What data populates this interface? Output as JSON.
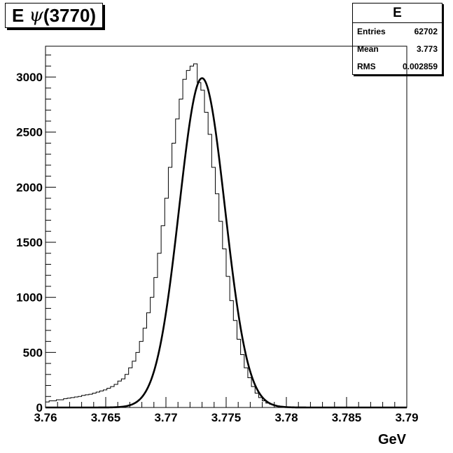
{
  "title": {
    "prefix": "E",
    "greek": "ψ",
    "suffix": "(3770)"
  },
  "stats": {
    "name": "E",
    "rows": [
      {
        "label": "Entries",
        "value": "62702"
      },
      {
        "label": "Mean",
        "value": "3.773"
      },
      {
        "label": "RMS",
        "value": "0.002859"
      }
    ]
  },
  "chart_data": {
    "type": "histogram",
    "xlabel": "GeV",
    "ylabel": "",
    "xlim": [
      3.76,
      3.79
    ],
    "ylim": [
      0,
      3280
    ],
    "x_ticks": [
      "3.76",
      "3.765",
      "3.77",
      "3.775",
      "3.78",
      "3.785",
      "3.79"
    ],
    "y_ticks": [
      "0",
      "500",
      "1000",
      "1500",
      "2000",
      "2500",
      "3000"
    ],
    "histogram": {
      "bin_width": 0.0003,
      "bin_start": 3.76,
      "counts": [
        50,
        60,
        60,
        70,
        70,
        80,
        85,
        90,
        95,
        100,
        110,
        115,
        120,
        130,
        140,
        150,
        160,
        175,
        190,
        210,
        240,
        260,
        300,
        360,
        420,
        500,
        600,
        720,
        860,
        1000,
        1180,
        1400,
        1650,
        1900,
        2180,
        2400,
        2620,
        2800,
        2980,
        3060,
        3100,
        3120,
        2950,
        2880,
        2680,
        2480,
        2180,
        1940,
        1690,
        1440,
        1190,
        970,
        790,
        620,
        480,
        360,
        270,
        190,
        130,
        90,
        60,
        40,
        30,
        20,
        12,
        8,
        5,
        3,
        2,
        1,
        0,
        0,
        0,
        0,
        0,
        0,
        0,
        0,
        0,
        0,
        0,
        0,
        0,
        0,
        0,
        0,
        0,
        0,
        0,
        0,
        0,
        0,
        0,
        0,
        0,
        0,
        0,
        0,
        0,
        0
      ]
    },
    "fit": {
      "type": "gaussian",
      "amplitude": 2990,
      "mean": 3.773,
      "sigma": 0.0019
    },
    "grid": false,
    "legend": "stats box top-right"
  }
}
